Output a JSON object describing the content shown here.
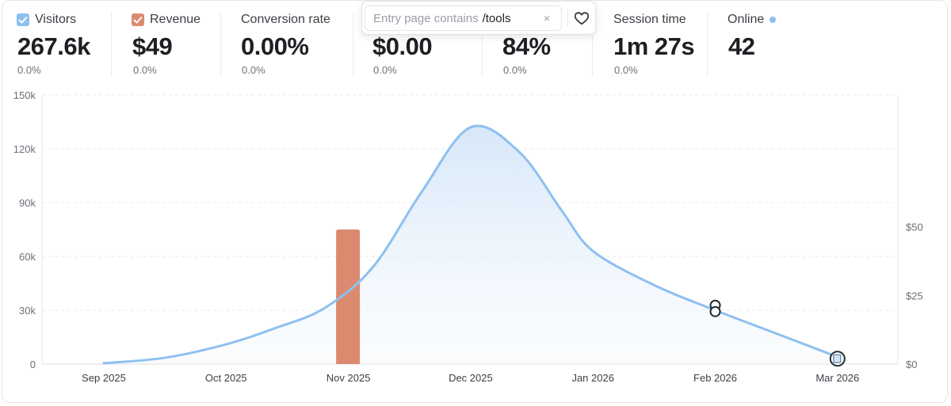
{
  "metrics": {
    "visitors": {
      "label": "Visitors",
      "value": "267.6k",
      "change": "0.0%",
      "checked": true
    },
    "revenue": {
      "label": "Revenue",
      "value": "$49",
      "change": "0.0%",
      "checked": true
    },
    "conversion": {
      "label": "Conversion rate",
      "value": "0.00%",
      "change": "0.0%"
    },
    "rev_per_visitor": {
      "value": "$0.00",
      "change": "0.0%"
    },
    "bounce": {
      "value": "84%",
      "change": "0.0%"
    },
    "session": {
      "label": "Session time",
      "value": "1m 27s",
      "change": "0.0%"
    },
    "online": {
      "label": "Online",
      "value": "42"
    }
  },
  "filter": {
    "key": "Entry page contains",
    "value": "/tools",
    "close": "×"
  },
  "colors": {
    "visitors": "#8ec0ef",
    "revenue": "#dc8a6f",
    "grid": "#e3e6ea"
  },
  "chart_data": {
    "type": "line",
    "title": "",
    "x": [
      "Sep 2025",
      "Oct 2025",
      "Nov 2025",
      "Dec 2025",
      "Jan 2026",
      "Feb 2026",
      "Mar 2026"
    ],
    "y_left_ticks": [
      "0",
      "30k",
      "60k",
      "90k",
      "120k",
      "150k"
    ],
    "y_right_ticks": [
      "$0",
      "$25",
      "$50"
    ],
    "ylim": [
      0,
      150000
    ],
    "y2lim": [
      0,
      98
    ],
    "series": [
      {
        "name": "Visitors",
        "type": "area-line",
        "points": [
          {
            "x": 0.0,
            "y": 500
          },
          {
            "x": 0.5,
            "y": 3500
          },
          {
            "x": 1.0,
            "y": 11000
          },
          {
            "x": 1.4,
            "y": 20000
          },
          {
            "x": 1.8,
            "y": 31000
          },
          {
            "x": 2.2,
            "y": 54000
          },
          {
            "x": 2.6,
            "y": 96000
          },
          {
            "x": 3.0,
            "y": 132000
          },
          {
            "x": 3.4,
            "y": 118000
          },
          {
            "x": 3.75,
            "y": 85000
          },
          {
            "x": 4.0,
            "y": 63000
          },
          {
            "x": 4.5,
            "y": 44000
          },
          {
            "x": 5.0,
            "y": 30000
          },
          {
            "x": 5.5,
            "y": 17000
          },
          {
            "x": 6.0,
            "y": 4000
          }
        ]
      },
      {
        "name": "Revenue",
        "type": "bar",
        "points": [
          {
            "x": 2.0,
            "y": 49
          }
        ]
      }
    ],
    "markers": [
      {
        "name": "annotation-marker",
        "x": 5.0,
        "y": 31000
      },
      {
        "name": "annotation-marker",
        "x": 6.0,
        "y": 3000
      }
    ]
  }
}
